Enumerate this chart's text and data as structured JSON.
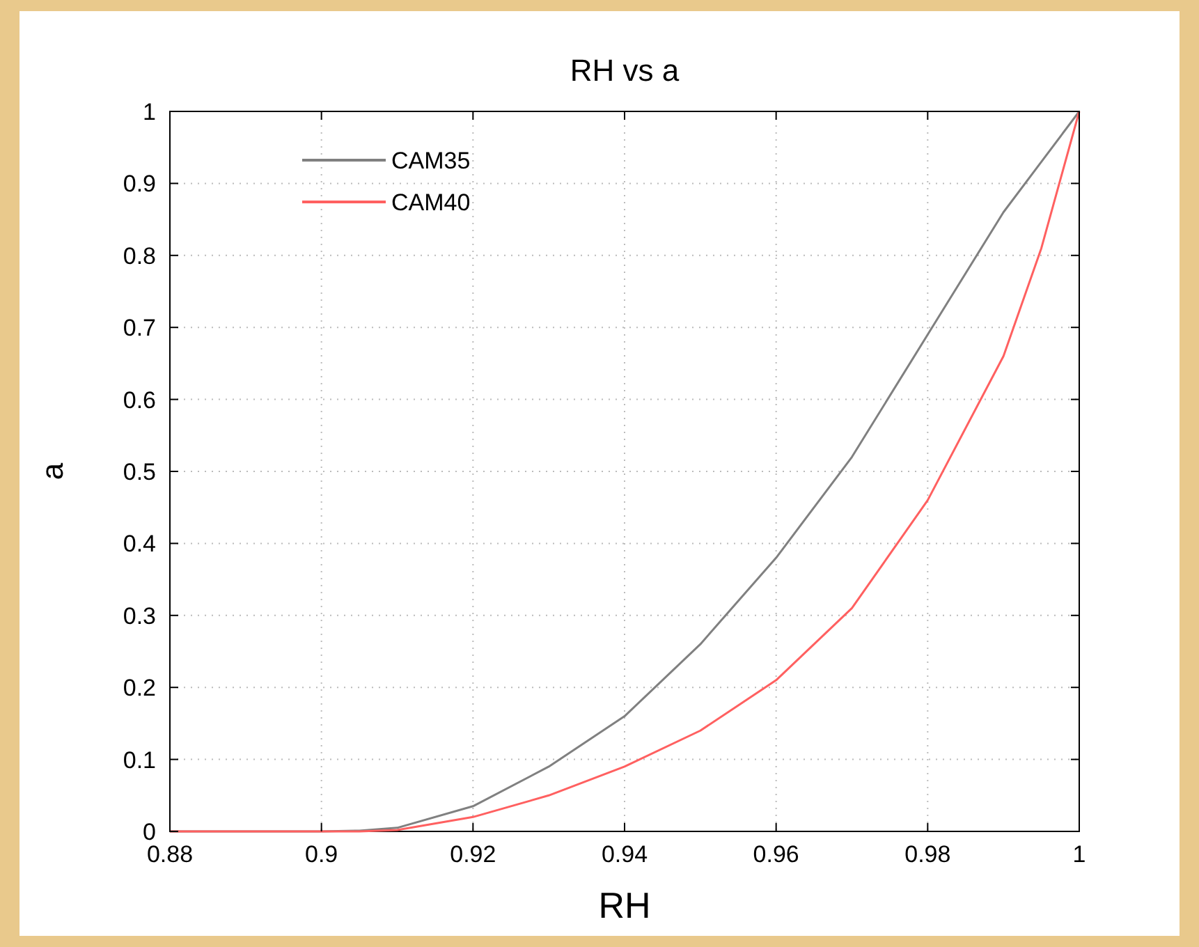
{
  "chart_data": {
    "type": "line",
    "title": "RH  vs  a",
    "xlabel": "RH",
    "ylabel": "a",
    "xlim": [
      0.88,
      1
    ],
    "xticks": [
      0.88,
      0.9,
      0.92,
      0.94,
      0.96,
      0.98,
      1
    ],
    "ylim": [
      0,
      1
    ],
    "yticks": [
      0,
      0.1,
      0.2,
      0.3,
      0.4,
      0.5,
      0.6,
      0.7,
      0.8,
      0.9,
      1
    ],
    "grid": true,
    "legend": "top left",
    "marker": "none",
    "line_style": "solid",
    "x": [
      0.88,
      0.89,
      0.9,
      0.905,
      0.91,
      0.92,
      0.93,
      0.94,
      0.95,
      0.96,
      0.97,
      0.98,
      0.99,
      0.995,
      1
    ],
    "series": [
      {
        "name": "CAM35",
        "color": "#808080",
        "values": [
          0,
          0,
          0,
          0.001,
          0.005,
          0.035,
          0.09,
          0.16,
          0.26,
          0.38,
          0.52,
          0.69,
          0.86,
          0.93,
          1
        ]
      },
      {
        "name": "CAM40",
        "color": "#ff6060",
        "values": [
          0,
          0,
          0,
          0,
          0.002,
          0.02,
          0.05,
          0.09,
          0.14,
          0.21,
          0.31,
          0.46,
          0.66,
          0.81,
          1
        ]
      }
    ]
  }
}
